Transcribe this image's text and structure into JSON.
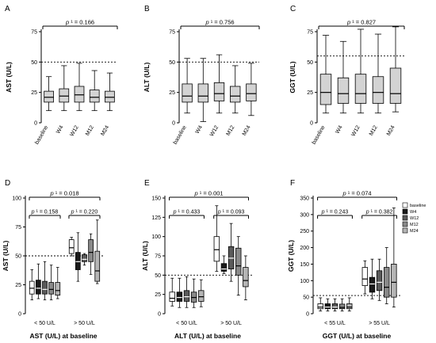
{
  "chart_data": [
    {
      "panel": "A",
      "type": "box",
      "ylabel": "AST (U/L)",
      "ylim": [
        0,
        75
      ],
      "yticks": [
        0,
        25,
        50,
        75
      ],
      "reference_line": 50,
      "pvalue": "p ¹ = 0.166",
      "categories": [
        "baseline",
        "W4",
        "W12",
        "M12",
        "M24"
      ],
      "boxes": [
        {
          "min": 10,
          "q1": 17,
          "median": 21,
          "q3": 26,
          "max": 38
        },
        {
          "min": 10,
          "q1": 17,
          "median": 22,
          "q3": 28,
          "max": 47
        },
        {
          "min": 10,
          "q1": 17,
          "median": 23,
          "q3": 30,
          "max": 49
        },
        {
          "min": 10,
          "q1": 17,
          "median": 21,
          "q3": 27,
          "max": 43
        },
        {
          "min": 10,
          "q1": 17,
          "median": 21,
          "q3": 26,
          "max": 41
        }
      ]
    },
    {
      "panel": "B",
      "type": "box",
      "ylabel": "ALT (U/L)",
      "ylim": [
        0,
        75
      ],
      "yticks": [
        0,
        25,
        50,
        75
      ],
      "reference_line": 50,
      "pvalue": "p ¹ = 0.756",
      "categories": [
        "baseline",
        "W4",
        "W12",
        "M12",
        "M24"
      ],
      "boxes": [
        {
          "min": 8,
          "q1": 17,
          "median": 22,
          "q3": 32,
          "max": 53
        },
        {
          "min": 1,
          "q1": 17,
          "median": 22,
          "q3": 32,
          "max": 53
        },
        {
          "min": 8,
          "q1": 18,
          "median": 24,
          "q3": 33,
          "max": 56
        },
        {
          "min": 8,
          "q1": 17,
          "median": 22,
          "q3": 30,
          "max": 47
        },
        {
          "min": 6,
          "q1": 18,
          "median": 24,
          "q3": 32,
          "max": 49
        }
      ]
    },
    {
      "panel": "C",
      "type": "box",
      "ylabel": "GGT (U/L)",
      "ylim": [
        0,
        75
      ],
      "yticks": [
        0,
        25,
        50,
        75
      ],
      "reference_line": 55,
      "pvalue": "p ¹ = 0.827",
      "categories": [
        "baseline",
        "W4",
        "W12",
        "M12",
        "M24"
      ],
      "boxes": [
        {
          "min": 8,
          "q1": 15,
          "median": 25,
          "q3": 40,
          "max": 72
        },
        {
          "min": 8,
          "q1": 16,
          "median": 24,
          "q3": 37,
          "max": 67
        },
        {
          "min": 8,
          "q1": 16,
          "median": 24,
          "q3": 40,
          "max": 77
        },
        {
          "min": 8,
          "q1": 16,
          "median": 25,
          "q3": 38,
          "max": 73
        },
        {
          "min": 9,
          "q1": 16,
          "median": 24,
          "q3": 45,
          "max": 79
        }
      ]
    },
    {
      "panel": "D",
      "type": "box",
      "ylabel": "AST (U/L)",
      "xlabel": "AST (U/L) at baseline",
      "ylim": [
        0,
        100
      ],
      "yticks": [
        0,
        25,
        50,
        75,
        100
      ],
      "reference_line": 50,
      "pvalue_overall": "p ¹ = 0.018",
      "group_labels": [
        "< 50 U/L",
        "> 50 U/L"
      ],
      "group_pvalues": [
        "p ¹ = 0.158",
        "p ¹ = 0.220"
      ],
      "series": [
        "baseline",
        "W4",
        "W12",
        "M12",
        "M24"
      ],
      "groups": [
        [
          {
            "min": 12,
            "q1": 17,
            "median": 22,
            "q3": 28,
            "max": 38
          },
          {
            "min": 13,
            "q1": 17,
            "median": 22,
            "q3": 29,
            "max": 43
          },
          {
            "min": 12,
            "q1": 17,
            "median": 21,
            "q3": 28,
            "max": 45
          },
          {
            "min": 12,
            "q1": 17,
            "median": 21,
            "q3": 27,
            "max": 42
          },
          {
            "min": 13,
            "q1": 16,
            "median": 20,
            "q3": 27,
            "max": 40
          }
        ],
        [
          {
            "min": 50,
            "q1": 52,
            "median": 57,
            "q3": 64,
            "max": 66
          },
          {
            "min": 28,
            "q1": 38,
            "median": 45,
            "q3": 53,
            "max": 70
          },
          {
            "min": 42,
            "q1": 45,
            "median": 47,
            "q3": 51,
            "max": 52
          },
          {
            "min": 34,
            "q1": 45,
            "median": 53,
            "q3": 64,
            "max": 69
          },
          {
            "min": 26,
            "q1": 28,
            "median": 37,
            "q3": 54,
            "max": 81
          }
        ]
      ]
    },
    {
      "panel": "E",
      "type": "box",
      "ylabel": "ALT (U/L)",
      "xlabel": "ALT (U/L) at baseline",
      "ylim": [
        0,
        150
      ],
      "yticks": [
        0,
        25,
        50,
        75,
        100,
        125,
        150
      ],
      "reference_line": 50,
      "pvalue_overall": "p ¹ = 0.001",
      "group_labels": [
        "< 50 U/L",
        "> 50 U/L"
      ],
      "group_pvalues": [
        "p ¹ = 0.433",
        "p ¹ = 0.093"
      ],
      "series": [
        "baseline",
        "W4",
        "W12",
        "M12",
        "M24"
      ],
      "groups": [
        [
          {
            "min": 10,
            "q1": 16,
            "median": 20,
            "q3": 28,
            "max": 46
          },
          {
            "min": 8,
            "q1": 16,
            "median": 21,
            "q3": 28,
            "max": 46
          },
          {
            "min": 8,
            "q1": 16,
            "median": 22,
            "q3": 30,
            "max": 48
          },
          {
            "min": 8,
            "q1": 15,
            "median": 21,
            "q3": 28,
            "max": 45
          },
          {
            "min": 9,
            "q1": 16,
            "median": 22,
            "q3": 30,
            "max": 44
          }
        ],
        [
          {
            "min": 55,
            "q1": 68,
            "median": 83,
            "q3": 100,
            "max": 140
          },
          {
            "min": 52,
            "q1": 55,
            "median": 58,
            "q3": 65,
            "max": 75
          },
          {
            "min": 42,
            "q1": 58,
            "median": 72,
            "q3": 87,
            "max": 117
          },
          {
            "min": 24,
            "q1": 50,
            "median": 62,
            "q3": 85,
            "max": 100
          },
          {
            "min": 18,
            "q1": 35,
            "median": 43,
            "q3": 60,
            "max": 75
          }
        ]
      ]
    },
    {
      "panel": "F",
      "type": "box",
      "ylabel": "GGT (U/L)",
      "xlabel": "GGT (U/L) at baseline",
      "ylim": [
        0,
        350
      ],
      "yticks": [
        0,
        50,
        100,
        150,
        200,
        250,
        300,
        350
      ],
      "reference_line": 55,
      "pvalue_overall": "p ¹ = 0.074",
      "group_labels": [
        "< 55 U/L",
        "> 55 U/L"
      ],
      "group_pvalues": [
        "p ¹ = 0.243",
        "p ¹ = 0.382"
      ],
      "series": [
        "baseline",
        "W4",
        "W12",
        "M12",
        "M24"
      ],
      "groups": [
        [
          {
            "min": 8,
            "q1": 15,
            "median": 20,
            "q3": 30,
            "max": 48
          },
          {
            "min": 8,
            "q1": 15,
            "median": 20,
            "q3": 30,
            "max": 45
          },
          {
            "min": 8,
            "q1": 15,
            "median": 20,
            "q3": 30,
            "max": 45
          },
          {
            "min": 8,
            "q1": 15,
            "median": 19,
            "q3": 29,
            "max": 45
          },
          {
            "min": 8,
            "q1": 15,
            "median": 20,
            "q3": 30,
            "max": 48
          }
        ],
        [
          {
            "min": 60,
            "q1": 85,
            "median": 105,
            "q3": 140,
            "max": 160
          },
          {
            "min": 45,
            "q1": 65,
            "median": 90,
            "q3": 110,
            "max": 165
          },
          {
            "min": 40,
            "q1": 70,
            "median": 95,
            "q3": 130,
            "max": 165
          },
          {
            "min": 30,
            "q1": 50,
            "median": 80,
            "q3": 140,
            "max": 200
          },
          {
            "min": 20,
            "q1": 50,
            "median": 95,
            "q3": 150,
            "max": 320
          }
        ]
      ]
    }
  ],
  "legend": {
    "entries": [
      {
        "label": "baseline",
        "color": "#ffffff"
      },
      {
        "label": "W4",
        "color": "#1a1a1a"
      },
      {
        "label": "W12",
        "color": "#5a5a5a"
      },
      {
        "label": "M12",
        "color": "#8a8a8a"
      },
      {
        "label": "M24",
        "color": "#b5b5b5"
      }
    ]
  },
  "colors": {
    "top_box_fill": "#d3d3d3",
    "stroke": "#000000"
  }
}
